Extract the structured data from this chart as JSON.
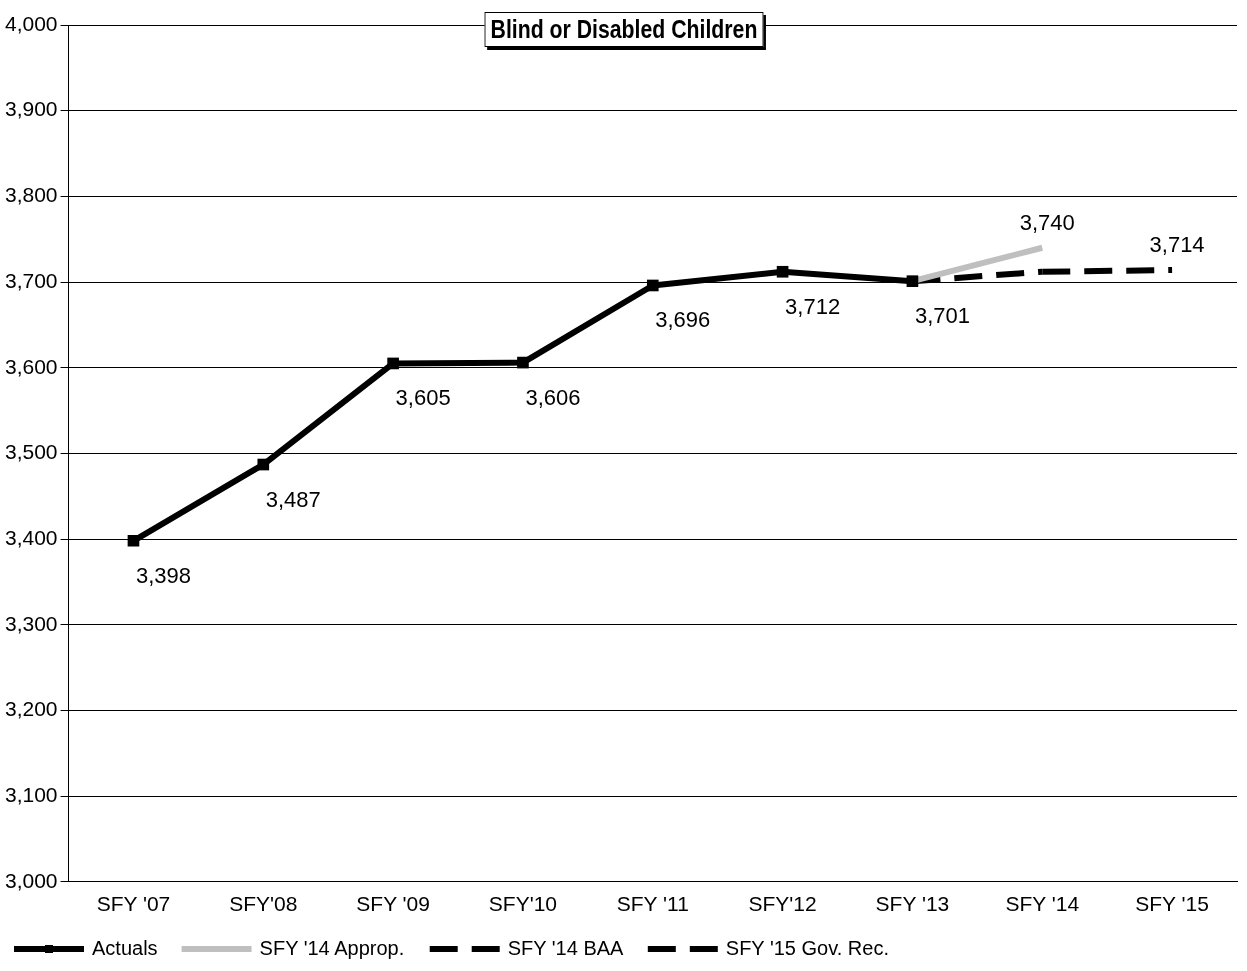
{
  "chart_data": {
    "type": "line",
    "title": "Blind or Disabled Children",
    "categories": [
      "SFY '07",
      "SFY'08",
      "SFY '09",
      "SFY'10",
      "SFY '11",
      "SFY'12",
      "SFY '13",
      "SFY '14",
      "SFY '15"
    ],
    "series": [
      {
        "name": "Actuals",
        "color": "#000000",
        "marker": "square",
        "line_style": "solid",
        "values": [
          3398,
          3487,
          3605,
          3606,
          3696,
          3712,
          3701,
          null,
          null
        ],
        "value_labels": [
          "3,398",
          "3,487",
          "3,605",
          "3,606",
          "3,696",
          "3,712",
          "3,701",
          null,
          null
        ]
      },
      {
        "name": "SFY '14 Approp.",
        "color": "#bfbfbf",
        "marker": "none",
        "line_style": "solid",
        "values": [
          null,
          null,
          null,
          null,
          null,
          null,
          3701,
          3740,
          null
        ],
        "value_labels": [
          null,
          null,
          null,
          null,
          null,
          null,
          null,
          "3,740",
          null
        ]
      },
      {
        "name": "SFY '14 BAA",
        "color": "#000000",
        "marker": "none",
        "line_style": "dashed",
        "values": [
          null,
          null,
          null,
          null,
          null,
          null,
          3701,
          3712,
          null
        ]
      },
      {
        "name": "SFY '15 Gov. Rec.",
        "color": "#000000",
        "marker": "none",
        "line_style": "dashed",
        "values": [
          null,
          null,
          null,
          null,
          null,
          null,
          null,
          3712,
          3714
        ],
        "value_labels": [
          null,
          null,
          null,
          null,
          null,
          null,
          null,
          null,
          "3,714"
        ]
      }
    ],
    "ylim": [
      3000,
      4000
    ],
    "yticks": [
      {
        "value": 3000,
        "label": "3,000"
      },
      {
        "value": 3100,
        "label": "3,100"
      },
      {
        "value": 3200,
        "label": "3,200"
      },
      {
        "value": 3300,
        "label": "3,300"
      },
      {
        "value": 3400,
        "label": "3,400"
      },
      {
        "value": 3500,
        "label": "3,500"
      },
      {
        "value": 3600,
        "label": "3,600"
      },
      {
        "value": 3700,
        "label": "3,700"
      },
      {
        "value": 3800,
        "label": "3,800"
      },
      {
        "value": 3900,
        "label": "3,900"
      },
      {
        "value": 4000,
        "label": "4,000"
      }
    ],
    "grid": "y",
    "legend": "bottom left"
  }
}
